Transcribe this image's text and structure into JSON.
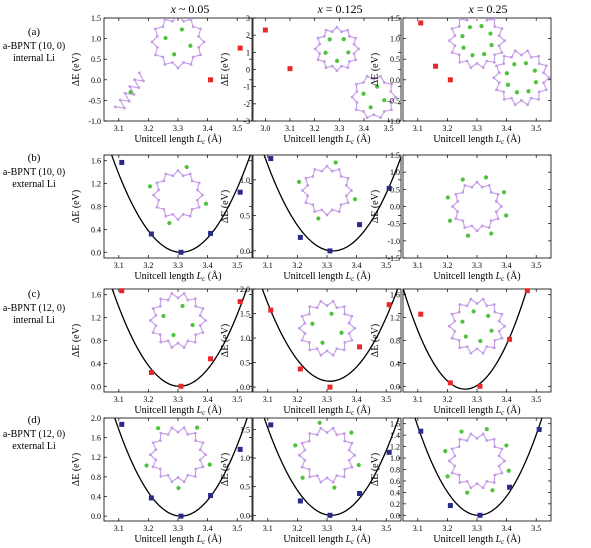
{
  "column_headers": [
    {
      "var": "x",
      "rel": "~",
      "val": "0.05"
    },
    {
      "var": "x",
      "rel": "=",
      "val": "0.125"
    },
    {
      "var": "x",
      "rel": "=",
      "val": "0.25"
    }
  ],
  "row_labels": [
    {
      "letter": "(a)",
      "line1": "a-BPNT (10, 0)",
      "line2": "internal Li"
    },
    {
      "letter": "(b)",
      "line1": "a-BPNT (10, 0)",
      "line2": "external Li"
    },
    {
      "letter": "(c)",
      "line1": "a-BPNT (12, 0)",
      "line2": "internal Li"
    },
    {
      "letter": "(d)",
      "line1": "a-BPNT (12, 0)",
      "line2": "external Li"
    }
  ],
  "axis_text": {
    "xlabel_main": "Unitcell length ",
    "xlabel_sym": "L",
    "xlabel_sub": "c",
    "xlabel_unit": " (Å)",
    "ylabel": "ΔE (eV)"
  },
  "colors": {
    "red": "#e8272b",
    "blue": "#2a2a8c",
    "curve": "#000000",
    "atom_purple": "#c49be6",
    "atom_green": "#4ec23b"
  },
  "chart_data": [
    {
      "type": "scatter",
      "panel": "a1",
      "color": "red",
      "xlim": [
        3.05,
        3.55
      ],
      "ylim": [
        -1.0,
        1.5
      ],
      "xticks": [
        "3.1",
        "3.2",
        "3.3",
        "3.4",
        "3.5"
      ],
      "yticks": [
        "-1.0",
        "-0.5",
        "0.0",
        "0.5",
        "1.0",
        "1.5"
      ],
      "points": [
        [
          3.41,
          0.0
        ],
        [
          3.51,
          0.77
        ]
      ],
      "fit": null,
      "molecules": [
        {
          "kind": "ring",
          "cx": 3.3,
          "cy": 0.92,
          "r": 0.16,
          "n": 12,
          "green": 4,
          "gr": 0.5
        },
        {
          "kind": "chain",
          "cx": 3.14,
          "cy": -0.3,
          "len": 0.14,
          "ang": 55
        }
      ]
    },
    {
      "type": "scatter",
      "panel": "a2",
      "color": "red",
      "xlim": [
        2.95,
        3.55
      ],
      "ylim": [
        -3.0,
        3.0
      ],
      "xticks": [
        "3.0",
        "3.1",
        "3.2",
        "3.3",
        "3.4",
        "3.5"
      ],
      "yticks": [
        "-3",
        "-2",
        "-1",
        "0",
        "1",
        "2",
        "3"
      ],
      "points": [
        [
          3.0,
          2.3
        ],
        [
          3.1,
          0.05
        ]
      ],
      "fit": null,
      "molecules": [
        {
          "kind": "ring",
          "cx": 3.29,
          "cy": 1.2,
          "r": 0.16,
          "n": 12,
          "green": 5,
          "gr": 0.55
        },
        {
          "kind": "ring",
          "cx": 3.44,
          "cy": -1.6,
          "r": 0.16,
          "n": 10,
          "green": 4,
          "gr": 0.5
        }
      ]
    },
    {
      "type": "scatter",
      "panel": "a3",
      "color": "red",
      "xlim": [
        3.05,
        3.55
      ],
      "ylim": [
        -1.0,
        1.5
      ],
      "xticks": [
        "3.1",
        "3.2",
        "3.3",
        "3.4",
        "3.5"
      ],
      "yticks": [
        "-1.0",
        "-0.5",
        "0.0",
        "0.5",
        "1.0",
        "1.5"
      ],
      "points": [
        [
          3.11,
          1.38
        ],
        [
          3.16,
          0.33
        ],
        [
          3.21,
          0.0
        ]
      ],
      "fit": null,
      "molecules": [
        {
          "kind": "ring",
          "cx": 3.3,
          "cy": 0.95,
          "r": 0.17,
          "n": 14,
          "green": 8,
          "gr": 0.55
        },
        {
          "kind": "ring",
          "cx": 3.45,
          "cy": 0.05,
          "r": 0.17,
          "n": 14,
          "green": 8,
          "gr": 0.55
        }
      ]
    },
    {
      "type": "scatter",
      "panel": "b1",
      "color": "blue",
      "xlim": [
        3.05,
        3.55
      ],
      "ylim": [
        -0.1,
        1.7
      ],
      "xticks": [
        "3.1",
        "3.2",
        "3.3",
        "3.4",
        "3.5"
      ],
      "yticks": [
        "0.0",
        "0.4",
        "0.8",
        "1.2",
        "1.6"
      ],
      "points": [
        [
          3.11,
          1.57
        ],
        [
          3.21,
          0.32
        ],
        [
          3.31,
          0.0
        ],
        [
          3.41,
          0.33
        ],
        [
          3.51,
          1.05
        ]
      ],
      "fit": {
        "a": 31.0,
        "x0": 3.31,
        "c": 0.0
      },
      "molecules": [
        {
          "kind": "ring",
          "cx": 3.3,
          "cy": 1.0,
          "r": 0.15,
          "n": 12,
          "green": 4,
          "gr": 1.2
        }
      ]
    },
    {
      "type": "scatter",
      "panel": "b2",
      "color": "blue",
      "xlim": [
        3.05,
        3.55
      ],
      "ylim": [
        -0.1,
        1.35
      ],
      "xticks": [
        "3.1",
        "3.2",
        "3.3",
        "3.4",
        "3.5"
      ],
      "yticks": [
        "0.0",
        "0.5",
        "1.0"
      ],
      "points": [
        [
          3.11,
          1.3
        ],
        [
          3.21,
          0.19
        ],
        [
          3.31,
          0.0
        ],
        [
          3.41,
          0.37
        ],
        [
          3.51,
          0.88
        ]
      ],
      "fit": {
        "a": 25.0,
        "x0": 3.32,
        "c": 0.0
      },
      "molecules": [
        {
          "kind": "ring",
          "cx": 3.3,
          "cy": 0.85,
          "r": 0.15,
          "n": 12,
          "green": 4,
          "gr": 1.2
        }
      ]
    },
    {
      "type": "scatter",
      "panel": "b3",
      "color": "blue",
      "xlim": [
        3.05,
        3.55
      ],
      "ylim": [
        -1.5,
        1.5
      ],
      "xticks": [
        "3.1",
        "3.2",
        "3.3",
        "3.4",
        "3.5"
      ],
      "yticks": [
        "-1.5",
        "-1.0",
        "-0.5",
        "0.0",
        "0.5",
        "1.0",
        "1.5"
      ],
      "points": [],
      "fit": null,
      "molecules": [
        {
          "kind": "ring",
          "cx": 3.3,
          "cy": 0.0,
          "r": 0.15,
          "n": 12,
          "green": 8,
          "gr": 1.25
        }
      ]
    },
    {
      "type": "scatter",
      "panel": "c1",
      "color": "red",
      "xlim": [
        3.05,
        3.55
      ],
      "ylim": [
        -0.1,
        1.7
      ],
      "xticks": [
        "3.1",
        "3.2",
        "3.3",
        "3.4",
        "3.5"
      ],
      "yticks": [
        "0.0",
        "0.4",
        "0.8",
        "1.2",
        "1.6"
      ],
      "points": [
        [
          3.11,
          1.67
        ],
        [
          3.21,
          0.24
        ],
        [
          3.31,
          0.0
        ],
        [
          3.41,
          0.48
        ],
        [
          3.51,
          1.48
        ]
      ],
      "fit": {
        "a": 33.0,
        "x0": 3.305,
        "c": 0.0
      },
      "molecules": [
        {
          "kind": "ring",
          "cx": 3.3,
          "cy": 1.15,
          "r": 0.17,
          "n": 14,
          "green": 4,
          "gr": 0.55
        }
      ]
    },
    {
      "type": "scatter",
      "panel": "c2",
      "color": "red",
      "xlim": [
        3.05,
        3.55
      ],
      "ylim": [
        -0.1,
        2.0
      ],
      "xticks": [
        "3.1",
        "3.2",
        "3.3",
        "3.4",
        "3.5"
      ],
      "yticks": [
        "0.0",
        "0.5",
        "1.0",
        "1.5",
        "2.0"
      ],
      "points": [
        [
          3.11,
          1.57
        ],
        [
          3.21,
          0.37
        ],
        [
          3.31,
          0.0
        ],
        [
          3.41,
          0.82
        ],
        [
          3.51,
          1.68
        ]
      ],
      "fit": {
        "a": 36.0,
        "x0": 3.31,
        "c": 0.12
      },
      "molecules": [
        {
          "kind": "ring",
          "cx": 3.3,
          "cy": 1.2,
          "r": 0.17,
          "n": 14,
          "green": 4,
          "gr": 0.55
        }
      ]
    },
    {
      "type": "scatter",
      "panel": "c3",
      "color": "red",
      "xlim": [
        3.05,
        3.55
      ],
      "ylim": [
        -0.1,
        1.7
      ],
      "xticks": [
        "3.1",
        "3.2",
        "3.3",
        "3.4",
        "3.5"
      ],
      "yticks": [
        "0.0",
        "0.4",
        "0.8",
        "1.2",
        "1.6"
      ],
      "points": [
        [
          3.11,
          1.26
        ],
        [
          3.21,
          0.06
        ],
        [
          3.31,
          0.0
        ],
        [
          3.41,
          0.82
        ],
        [
          3.47,
          1.67
        ]
      ],
      "fit": {
        "a": 40.0,
        "x0": 3.26,
        "c": -0.05
      },
      "molecules": [
        {
          "kind": "ring",
          "cx": 3.3,
          "cy": 1.05,
          "r": 0.17,
          "n": 14,
          "green": 6,
          "gr": 0.55
        }
      ]
    },
    {
      "type": "scatter",
      "panel": "d1",
      "color": "blue",
      "xlim": [
        3.05,
        3.55
      ],
      "ylim": [
        -0.1,
        2.0
      ],
      "xticks": [
        "3.1",
        "3.2",
        "3.3",
        "3.4",
        "3.5"
      ],
      "yticks": [
        "0.0",
        "0.4",
        "0.8",
        "1.2",
        "1.6",
        "2.0"
      ],
      "points": [
        [
          3.11,
          1.87
        ],
        [
          3.21,
          0.37
        ],
        [
          3.31,
          0.0
        ],
        [
          3.41,
          0.42
        ],
        [
          3.51,
          1.36
        ]
      ],
      "fit": {
        "a": 40.0,
        "x0": 3.31,
        "c": 0.0
      },
      "molecules": [
        {
          "kind": "ring",
          "cx": 3.3,
          "cy": 1.25,
          "r": 0.17,
          "n": 14,
          "green": 5,
          "gr": 1.2
        }
      ]
    },
    {
      "type": "scatter",
      "panel": "d2",
      "color": "blue",
      "xlim": [
        3.05,
        3.55
      ],
      "ylim": [
        -0.1,
        1.7
      ],
      "xticks": [
        "3.1",
        "3.2",
        "3.3",
        "3.4",
        "3.5"
      ],
      "yticks": [
        "0.0",
        "0.5",
        "1.0",
        "1.5"
      ],
      "points": [
        [
          3.11,
          1.58
        ],
        [
          3.21,
          0.25
        ],
        [
          3.31,
          0.0
        ],
        [
          3.41,
          0.38
        ],
        [
          3.51,
          1.1
        ]
      ],
      "fit": {
        "a": 33.0,
        "x0": 3.315,
        "c": 0.0
      },
      "molecules": [
        {
          "kind": "ring",
          "cx": 3.3,
          "cy": 1.05,
          "r": 0.17,
          "n": 14,
          "green": 6,
          "gr": 1.2
        }
      ]
    },
    {
      "type": "scatter",
      "panel": "d3",
      "color": "blue",
      "xlim": [
        3.05,
        3.55
      ],
      "ylim": [
        -0.1,
        1.7
      ],
      "xticks": [
        "3.1",
        "3.2",
        "3.3",
        "3.4",
        "3.5"
      ],
      "yticks": [
        "0.0",
        "0.2",
        "0.4",
        "0.6",
        "0.8",
        "1.0",
        "1.2",
        "1.4",
        "1.6"
      ],
      "points": [
        [
          3.11,
          1.47
        ],
        [
          3.21,
          0.17
        ],
        [
          3.31,
          0.0
        ],
        [
          3.41,
          0.49
        ],
        [
          3.51,
          1.5
        ]
      ],
      "fit": {
        "a": 37.0,
        "x0": 3.305,
        "c": 0.0
      },
      "molecules": [
        {
          "kind": "ring",
          "cx": 3.3,
          "cy": 0.95,
          "r": 0.17,
          "n": 14,
          "green": 8,
          "gr": 1.2
        }
      ]
    }
  ]
}
